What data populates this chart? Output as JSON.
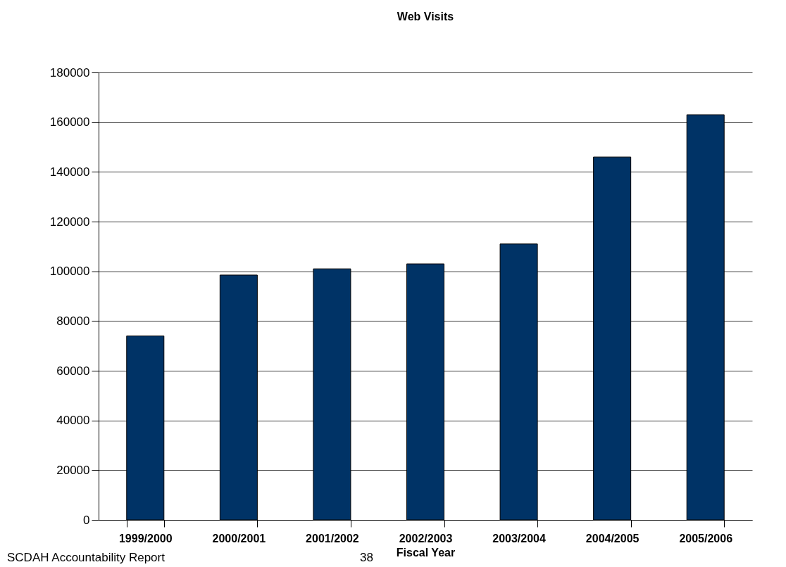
{
  "chart_data": {
    "type": "bar",
    "title": "Web Visits",
    "xlabel": "Fiscal Year",
    "categories": [
      "1999/2000",
      "2000/2001",
      "2001/2002",
      "2002/2003",
      "2003/2004",
      "2004/2005",
      "2005/2006"
    ],
    "values": [
      74000,
      98500,
      101000,
      103000,
      111000,
      146000,
      163000
    ],
    "color": "#003366",
    "ylim": [
      0,
      180000
    ],
    "yticks": [
      0,
      20000,
      40000,
      60000,
      80000,
      100000,
      120000,
      140000,
      160000,
      180000
    ],
    "grid": "y",
    "annotations": [
      "SCDAH Accountability Report",
      "38"
    ]
  }
}
